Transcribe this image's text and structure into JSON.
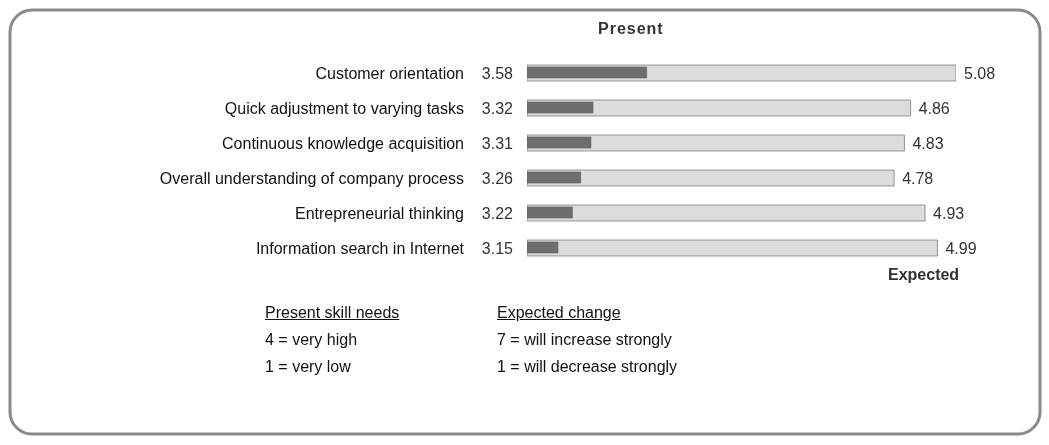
{
  "chart_data": {
    "type": "bar",
    "orientation": "horizontal",
    "categories": [
      "Customer orientation",
      "Quick adjustment to varying tasks",
      "Continuous knowledge acquisition",
      "Overall understanding of company process",
      "Entrepreneurial thinking",
      "Information search in Internet"
    ],
    "series": [
      {
        "name": "Present",
        "color": "#6e6e6e",
        "values": [
          3.58,
          3.32,
          3.31,
          3.26,
          3.22,
          3.15
        ]
      },
      {
        "name": "Expected",
        "color": "#dcdcdc",
        "values": [
          5.08,
          4.86,
          4.83,
          4.78,
          4.93,
          4.99
        ]
      }
    ],
    "xlim": [
      3,
      5.08
    ],
    "tick_labels": false,
    "data_labels": true,
    "grid": false,
    "annotations": [
      "Present skill needs",
      "4 = very high",
      "1 = very low",
      "Expected change",
      "7 = will increase strongly",
      "1 = will decrease strongly"
    ]
  }
}
